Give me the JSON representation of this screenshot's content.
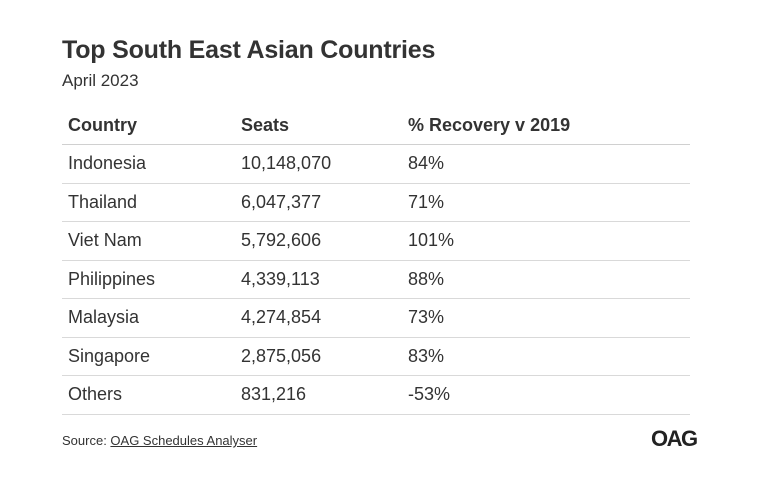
{
  "chart_data": {
    "type": "table",
    "title": "Top South East Asian Countries",
    "subtitle": "April 2023",
    "columns": [
      "Country",
      "Seats",
      "% Recovery v 2019"
    ],
    "rows": [
      [
        "Indonesia",
        "10,148,070",
        "84%"
      ],
      [
        "Thailand",
        "6,047,377",
        "71%"
      ],
      [
        "Viet Nam",
        "5,792,606",
        "101%"
      ],
      [
        "Philippines",
        "4,339,113",
        "88%"
      ],
      [
        "Malaysia",
        "4,274,854",
        "73%"
      ],
      [
        "Singapore",
        "2,875,056",
        "83%"
      ],
      [
        "Others",
        "831,216",
        "-53%"
      ]
    ]
  },
  "footer": {
    "source_prefix": "Source: ",
    "source_link": "OAG Schedules Analyser",
    "logo": "OAG"
  }
}
